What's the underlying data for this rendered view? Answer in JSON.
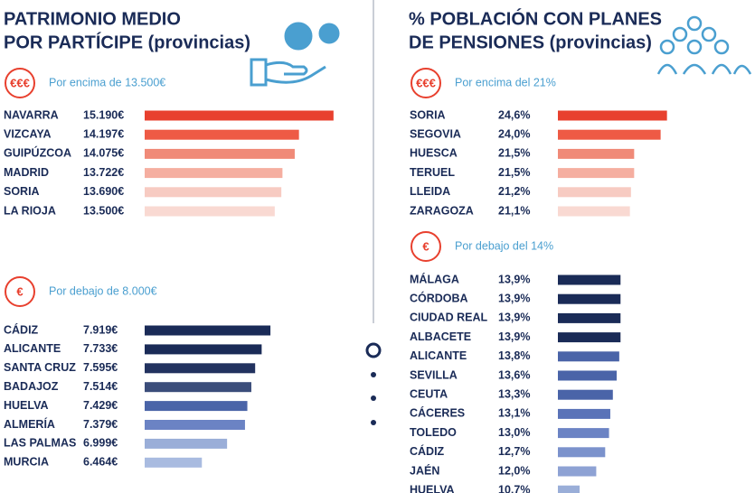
{
  "chart_data": [
    {
      "type": "bar",
      "title": [
        "PATRIMONIO MEDIO",
        "POR PARTÍCIPE (provincias)"
      ],
      "badge": "€€€",
      "subtitle": "Por encima de 13.500€",
      "categories": [
        "NAVARRA",
        "VIZCAYA",
        "GUIPÚZCOA",
        "MADRID",
        "SORIA",
        "LA RIOJA"
      ],
      "values": [
        15190,
        14197,
        14075,
        13722,
        13690,
        13500
      ],
      "value_labels": [
        "15.190€",
        "14.197€",
        "14.075€",
        "13.722€",
        "13.690€",
        "13.500€"
      ],
      "colors": [
        "#e8402e",
        "#ee5a45",
        "#f08a78",
        "#f5aea0",
        "#f7cbc2",
        "#f9d9d2"
      ],
      "xlim": [
        9760,
        15220
      ]
    },
    {
      "type": "bar",
      "badge": "€",
      "subtitle": "Por debajo de 8.000€",
      "categories": [
        "CÁDIZ",
        "ALICANTE",
        "SANTA CRUZ",
        "BADAJOZ",
        "HUELVA",
        "ALMERÍA",
        "LAS PALMAS",
        "MURCIA"
      ],
      "values": [
        7919,
        7733,
        7595,
        7514,
        7429,
        7379,
        6999,
        6464
      ],
      "value_labels": [
        "7.919€",
        "7.733€",
        "7.595€",
        "7.514€",
        "7.429€",
        "7.379€",
        "6.999€",
        "6.464€"
      ],
      "colors": [
        "#1a2b57",
        "#1a2b57",
        "#22325f",
        "#3b4d7a",
        "#4a64a8",
        "#6b83c4",
        "#9aaed8",
        "#a9bbe0"
      ],
      "xlim": [
        5250,
        9280
      ]
    },
    {
      "type": "bar",
      "title": [
        "% POBLACIÓN CON PLANES",
        "DE PENSIONES (provincias)"
      ],
      "badge": "€€€",
      "subtitle": "Por encima del 21%",
      "categories": [
        "SORIA",
        "SEGOVIA",
        "HUESCA",
        "TERUEL",
        "LLEIDA",
        "ZARAGOZA"
      ],
      "values": [
        24.6,
        24.0,
        21.5,
        21.5,
        21.2,
        21.1
      ],
      "value_labels": [
        "24,6%",
        "24,0%",
        "21,5%",
        "21,5%",
        "21,2%",
        "21,1%"
      ],
      "colors": [
        "#e8402e",
        "#ee5a45",
        "#f08a78",
        "#f5aea0",
        "#f7cbc2",
        "#f9d9d2"
      ],
      "xlim": [
        14.3,
        24.8
      ]
    },
    {
      "type": "bar",
      "badge": "€",
      "subtitle": "Por debajo del 14%",
      "categories": [
        "MÁLAGA",
        "CÓRDOBA",
        "CIUDAD REAL",
        "ALBACETE",
        "ALICANTE",
        "SEVILLA",
        "CEUTA",
        "CÁCERES",
        "TOLEDO",
        "CÁDIZ",
        "JAÉN",
        "HUELVA"
      ],
      "values": [
        13.9,
        13.9,
        13.9,
        13.9,
        13.8,
        13.6,
        13.3,
        13.1,
        13.0,
        12.7,
        12.0,
        10.7
      ],
      "value_labels": [
        "13,9%",
        "13,9%",
        "13,9%",
        "13,9%",
        "13,8%",
        "13,6%",
        "13,3%",
        "13,1%",
        "13,0%",
        "12,7%",
        "12,0%",
        "10,7%"
      ],
      "colors": [
        "#1a2b57",
        "#1a2b57",
        "#1a2b57",
        "#1a2b57",
        "#4a64a8",
        "#4a64a8",
        "#4a64a8",
        "#5a73b8",
        "#6b83c4",
        "#7b92cc",
        "#8ea2d4",
        "#9aaed8"
      ],
      "xlim": [
        9.0,
        17.7
      ]
    }
  ]
}
